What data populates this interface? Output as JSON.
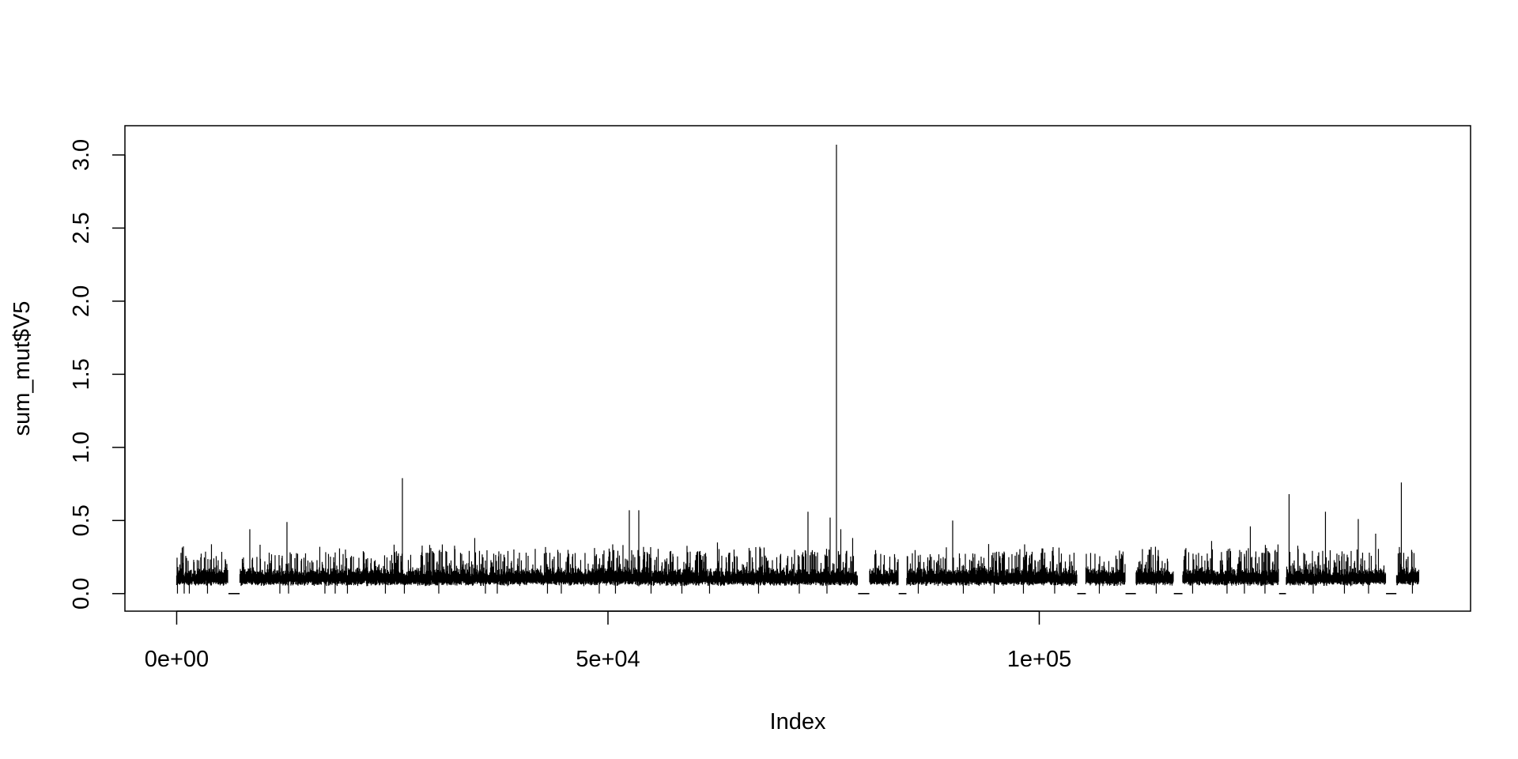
{
  "chart_data": {
    "type": "line",
    "title": "",
    "xlabel": "Index",
    "ylabel": "sum_mut$V5",
    "xlim": [
      -6000,
      150000
    ],
    "ylim": [
      -0.12,
      3.2
    ],
    "x_ticks": [
      {
        "value": 0,
        "label": "0e+00"
      },
      {
        "value": 50000,
        "label": "5e+04"
      },
      {
        "value": 100000,
        "label": "1e+05"
      }
    ],
    "y_ticks": [
      {
        "value": 0.0,
        "label": "0.0"
      },
      {
        "value": 0.5,
        "label": "0.5"
      },
      {
        "value": 1.0,
        "label": "1.0"
      },
      {
        "value": 1.5,
        "label": "1.5"
      },
      {
        "value": 2.0,
        "label": "2.0"
      },
      {
        "value": 2.5,
        "label": "2.5"
      },
      {
        "value": 3.0,
        "label": "3.0"
      }
    ],
    "grid": false,
    "legend": "none",
    "line_color": "#000000",
    "series": [
      {
        "n_points": 144000,
        "baseline": 0.1,
        "peaks": [
          {
            "x": 76500,
            "y": 3.07
          },
          {
            "x": 26200,
            "y": 0.79
          },
          {
            "x": 142000,
            "y": 0.76
          },
          {
            "x": 129000,
            "y": 0.68
          },
          {
            "x": 52500,
            "y": 0.57
          },
          {
            "x": 53600,
            "y": 0.57
          },
          {
            "x": 73200,
            "y": 0.56
          },
          {
            "x": 133200,
            "y": 0.56
          },
          {
            "x": 75800,
            "y": 0.52
          },
          {
            "x": 116500,
            "y": 0.52
          },
          {
            "x": 137000,
            "y": 0.51
          },
          {
            "x": 90000,
            "y": 0.5
          },
          {
            "x": 12800,
            "y": 0.49
          },
          {
            "x": 105000,
            "y": 0.48
          },
          {
            "x": 124500,
            "y": 0.46
          },
          {
            "x": 8500,
            "y": 0.44
          },
          {
            "x": 77000,
            "y": 0.44
          },
          {
            "x": 84000,
            "y": 0.42
          },
          {
            "x": 139000,
            "y": 0.41
          },
          {
            "x": 34600,
            "y": 0.38
          },
          {
            "x": 78400,
            "y": 0.38
          },
          {
            "x": 120000,
            "y": 0.36
          },
          {
            "x": 62700,
            "y": 0.35
          }
        ],
        "zero_segments": [
          [
            6000,
            7300
          ],
          [
            79000,
            80300
          ],
          [
            83700,
            84600
          ],
          [
            104400,
            105400
          ],
          [
            110000,
            111200
          ],
          [
            115600,
            116600
          ],
          [
            127800,
            128600
          ],
          [
            140200,
            141400
          ]
        ],
        "zero_dips": [
          120,
          900,
          1500,
          3600,
          12000,
          13000,
          17200,
          18400,
          19800,
          24200,
          26400,
          30400,
          35800,
          37200,
          43000,
          44600,
          49000,
          50900,
          55000,
          58600,
          61800,
          67500,
          72200,
          75400,
          86000,
          91200,
          94800,
          98200,
          101800,
          107000,
          113600,
          117800,
          121800,
          123800,
          126200,
          131800,
          135400,
          138200,
          143300
        ]
      }
    ]
  }
}
